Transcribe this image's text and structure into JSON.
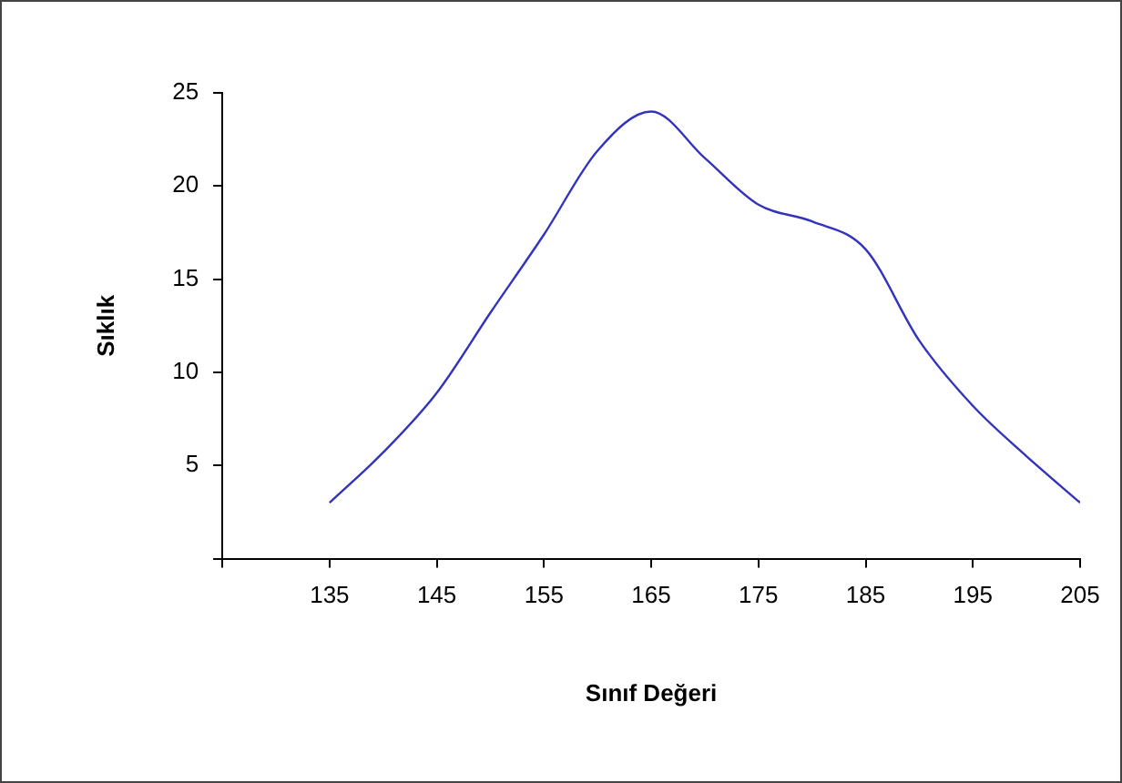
{
  "chart_data": {
    "type": "line",
    "xlabel": "Sınıf Değeri",
    "ylabel": "Sıklık",
    "x": [
      135,
      140,
      145,
      150,
      155,
      160,
      165,
      170,
      175,
      180,
      185,
      190,
      195,
      200,
      205
    ],
    "series": [
      {
        "color": "#3333bb",
        "values": [
          3,
          5.7,
          8.9,
          13.2,
          17.4,
          21.9,
          24,
          21.5,
          19,
          18.1,
          16.6,
          11.7,
          8.2,
          5.5,
          3
        ]
      }
    ],
    "xlim": [
      125,
      205
    ],
    "xticks": [
      {
        "value": 125,
        "label": null
      },
      135,
      145,
      155,
      165,
      175,
      185,
      195,
      205
    ],
    "ylim": [
      0,
      25
    ],
    "yticks": [
      {
        "value": 0,
        "label": null
      },
      5,
      10,
      15,
      20,
      25
    ],
    "grid": false,
    "legend": false,
    "marker": "none",
    "line_style": "solid"
  }
}
